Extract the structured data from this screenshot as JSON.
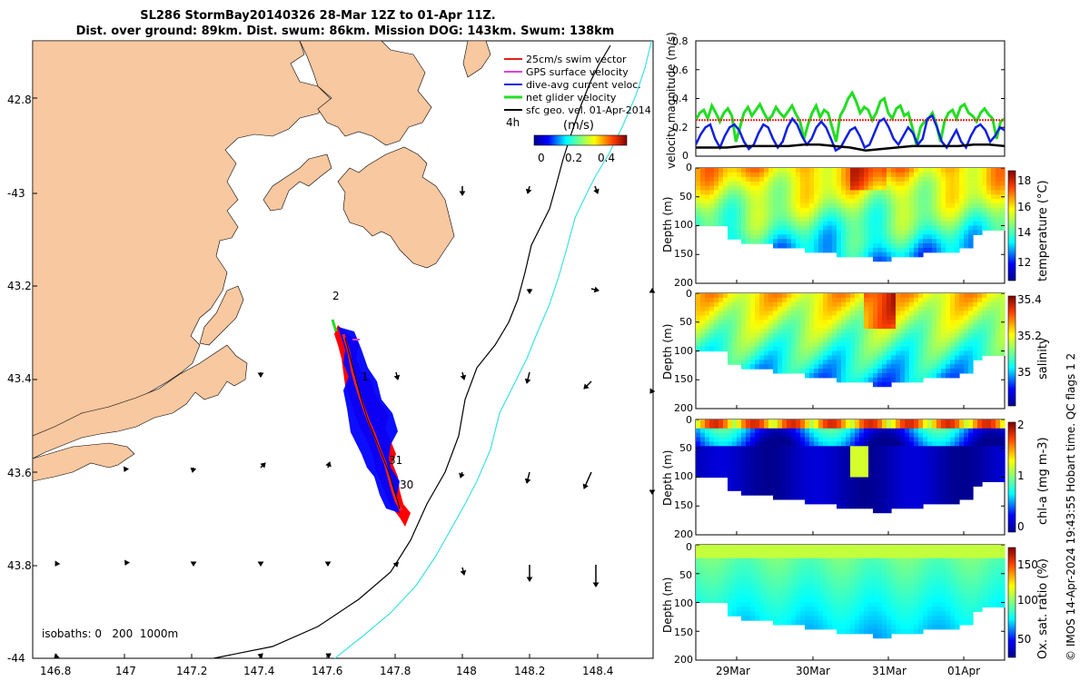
{
  "title": {
    "line1": "SL286 StormBay20140326 28-Mar 12Z to 01-Apr 11Z.",
    "line2": "Dist. over ground: 89km. Dist. swum: 86km. Mission DOG: 143km. Swum: 138km"
  },
  "map": {
    "lon_ticks": [
      "146.8",
      "147",
      "147.2",
      "147.4",
      "147.6",
      "147.8",
      "148",
      "148.2",
      "148.4"
    ],
    "lat_ticks": [
      "42.8",
      "-43",
      "43.2",
      "43.4",
      "43.6",
      "43.8",
      "-44"
    ],
    "legend": [
      {
        "label": "25cm/s swim vector",
        "color": "#e02020"
      },
      {
        "label": "GPS surface velocity",
        "color": "#e040e0"
      },
      {
        "label": "dive-avg current veloc.",
        "color": "#1010e0"
      },
      {
        "label": "net glider velocity",
        "color": "#20e020"
      },
      {
        "label": "sfc geo. vel. 01-Apr-2014",
        "color": "#000000"
      }
    ],
    "time_marker": "4h",
    "colorbar_title": "(m/s)",
    "colorbar_ticks": [
      "0",
      "0.2",
      "0.4"
    ],
    "isobaths_label": "isobaths: 0   200  1000m",
    "day_labels": [
      "2",
      "1",
      "31",
      "30"
    ],
    "colors": {
      "land": "#f8c8a0",
      "track_red": "#ff0000",
      "track_blue": "#0000ff",
      "iso200": "#000000",
      "iso1000": "#40e0e0"
    }
  },
  "chart_data": [
    {
      "type": "line",
      "ylabel": "velocity magnitude (m/s)",
      "ylim": [
        0,
        0.8
      ],
      "yticks": [
        "0",
        "0.2",
        "0.4",
        "0.6",
        "0.8"
      ],
      "series": [
        {
          "name": "net glider velocity",
          "color": "#22dd22",
          "values": [
            0.25,
            0.3,
            0.32,
            0.26,
            0.35,
            0.3,
            0.24,
            0.3,
            0.33,
            0.28,
            0.1,
            0.2,
            0.3,
            0.34,
            0.28,
            0.32,
            0.36,
            0.3,
            0.25,
            0.28,
            0.34,
            0.3,
            0.27,
            0.31,
            0.35,
            0.29,
            0.24,
            0.12,
            0.22,
            0.3,
            0.35,
            0.27,
            0.32,
            0.3,
            0.2,
            0.1,
            0.28,
            0.33,
            0.4,
            0.44,
            0.38,
            0.3,
            0.34,
            0.32,
            0.25,
            0.3,
            0.38,
            0.4,
            0.3,
            0.26,
            0.33,
            0.35,
            0.28,
            0.3,
            0.2,
            0.08,
            0.2,
            0.24,
            0.26,
            0.3,
            0.22,
            0.1,
            0.24,
            0.3,
            0.32,
            0.26,
            0.34,
            0.36,
            0.3,
            0.28,
            0.24,
            0.3,
            0.33,
            0.29,
            0.26,
            0.12,
            0.24,
            0.26
          ]
        },
        {
          "name": "25cm/s swim vector",
          "color": "#ee2222",
          "values": [
            0.25,
            0.25
          ]
        },
        {
          "name": "dive-avg current veloc.",
          "color": "#1020e0",
          "values": [
            0.08,
            0.15,
            0.2,
            0.22,
            0.12,
            0.06,
            0.14,
            0.2,
            0.22,
            0.18,
            0.1,
            0.05,
            0.08,
            0.16,
            0.22,
            0.2,
            0.12,
            0.06,
            0.1,
            0.2,
            0.26,
            0.22,
            0.14,
            0.08,
            0.12,
            0.2,
            0.24,
            0.2,
            0.12,
            0.04,
            0.06,
            0.12,
            0.18,
            0.2,
            0.14,
            0.06,
            0.08,
            0.16,
            0.24,
            0.26,
            0.2,
            0.12,
            0.08,
            0.14,
            0.2,
            0.16,
            0.08,
            0.12,
            0.26,
            0.28,
            0.2,
            0.1,
            0.06,
            0.12,
            0.18,
            0.1,
            0.06,
            0.14,
            0.2,
            0.22,
            0.18,
            0.1,
            0.14,
            0.2,
            0.18
          ]
        },
        {
          "name": "sfc geo. vel.",
          "color": "#000000",
          "values": [
            0.06,
            0.06,
            0.06,
            0.07,
            0.07,
            0.07,
            0.07,
            0.08,
            0.08,
            0.07,
            0.06,
            0.04,
            0.05,
            0.06,
            0.07,
            0.07,
            0.07,
            0.07,
            0.08,
            0.08,
            0.07
          ]
        }
      ]
    },
    {
      "type": "heatmap",
      "ylabel": "Depth (m)",
      "ylim": [
        200,
        0
      ],
      "yticks": [
        "0",
        "50",
        "100",
        "150",
        "200"
      ],
      "colorbar_label": "temperature (°C)",
      "colorbar_ticks": [
        "12",
        "14",
        "16",
        "18"
      ],
      "clim": [
        11,
        18.5
      ]
    },
    {
      "type": "heatmap",
      "ylabel": "Depth (m)",
      "ylim": [
        200,
        0
      ],
      "yticks": [
        "0",
        "50",
        "100",
        "150",
        "200"
      ],
      "colorbar_label": "salinity",
      "colorbar_ticks": [
        "35",
        "35.2",
        "35.4"
      ],
      "clim": [
        34.85,
        35.45
      ]
    },
    {
      "type": "heatmap",
      "ylabel": "Depth (m)",
      "ylim": [
        200,
        0
      ],
      "yticks": [
        "0",
        "50",
        "100",
        "150",
        "200"
      ],
      "colorbar_label": "chl-a (mg m-3)",
      "colorbar_ticks": [
        "0",
        "1",
        "2"
      ],
      "clim": [
        0,
        2
      ]
    },
    {
      "type": "heatmap",
      "ylabel": "Depth (m)",
      "ylim": [
        200,
        0
      ],
      "yticks": [
        "0",
        "50",
        "100",
        "150",
        "200"
      ],
      "colorbar_label": "Ox. sat. ratio (%)",
      "colorbar_ticks": [
        "50",
        "100",
        "150"
      ],
      "clim": [
        20,
        175
      ]
    }
  ],
  "time_axis": {
    "xticks": [
      "29Mar",
      "30Mar",
      "31Mar",
      "01Apr"
    ]
  },
  "side_label": "© IMOS 14-Apr-2024 19:43:55 Hobart time. QC flags 1  2"
}
